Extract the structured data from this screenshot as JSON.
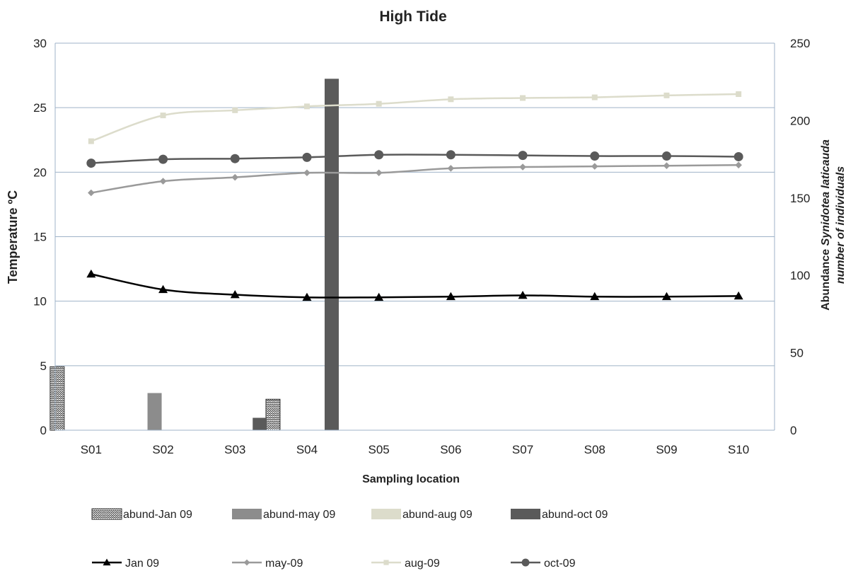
{
  "chart_data": {
    "type": "bar",
    "title": "High Tide",
    "xlabel": "Sampling location",
    "ylabel": "Temperature ºC",
    "y2label_line1_prefix": "Abundance ",
    "y2label_line1_italic": "Synidotea laticauda",
    "y2label_line2": "number of individuals",
    "categories": [
      "S01",
      "S02",
      "S03",
      "S04",
      "S05",
      "S06",
      "S07",
      "S08",
      "S09",
      "S10"
    ],
    "ylim": [
      0,
      30
    ],
    "yticks": [
      0,
      5,
      10,
      15,
      20,
      25,
      30
    ],
    "y2lim": [
      0,
      250
    ],
    "y2ticks": [
      0,
      50,
      100,
      150,
      200,
      250
    ],
    "grid": true,
    "legend_position": "bottom",
    "bar_series": [
      {
        "name": "abund-Jan 09",
        "color": "#d9d9d9",
        "pattern": "zigzag",
        "values": [
          41,
          0,
          0,
          20,
          0,
          0,
          0,
          0,
          0,
          0
        ]
      },
      {
        "name": "abund-may 09",
        "color": "#8c8c8c",
        "values": [
          0,
          24,
          0,
          0,
          0,
          0,
          0,
          0,
          0,
          0
        ]
      },
      {
        "name": "abund-aug 09",
        "color": "#dcdccb",
        "values": [
          0,
          0,
          0,
          0,
          0,
          0,
          0,
          0,
          0,
          0
        ]
      },
      {
        "name": "abund-oct 09",
        "color": "#5a5a5a",
        "values": [
          0,
          0,
          8,
          227,
          0,
          0,
          0,
          0,
          0,
          0
        ]
      }
    ],
    "line_series": [
      {
        "name": "Jan 09",
        "color": "#000000",
        "marker": "triangle",
        "values": [
          12.1,
          10.9,
          10.5,
          10.3,
          10.3,
          10.35,
          10.45,
          10.35,
          10.35,
          10.4
        ]
      },
      {
        "name": "may-09",
        "color": "#9a9a9a",
        "marker": "diamond",
        "values": [
          18.4,
          19.3,
          19.6,
          19.95,
          19.95,
          20.3,
          20.4,
          20.45,
          20.5,
          20.55
        ]
      },
      {
        "name": "aug-09",
        "color": "#dcdccb",
        "marker": "square",
        "values": [
          22.4,
          24.4,
          24.8,
          25.1,
          25.3,
          25.65,
          25.75,
          25.8,
          25.95,
          26.05
        ]
      },
      {
        "name": "oct-09",
        "color": "#5a5a5a",
        "marker": "circle",
        "values": [
          20.7,
          21.0,
          21.05,
          21.15,
          21.35,
          21.35,
          21.3,
          21.25,
          21.25,
          21.2
        ]
      }
    ]
  }
}
